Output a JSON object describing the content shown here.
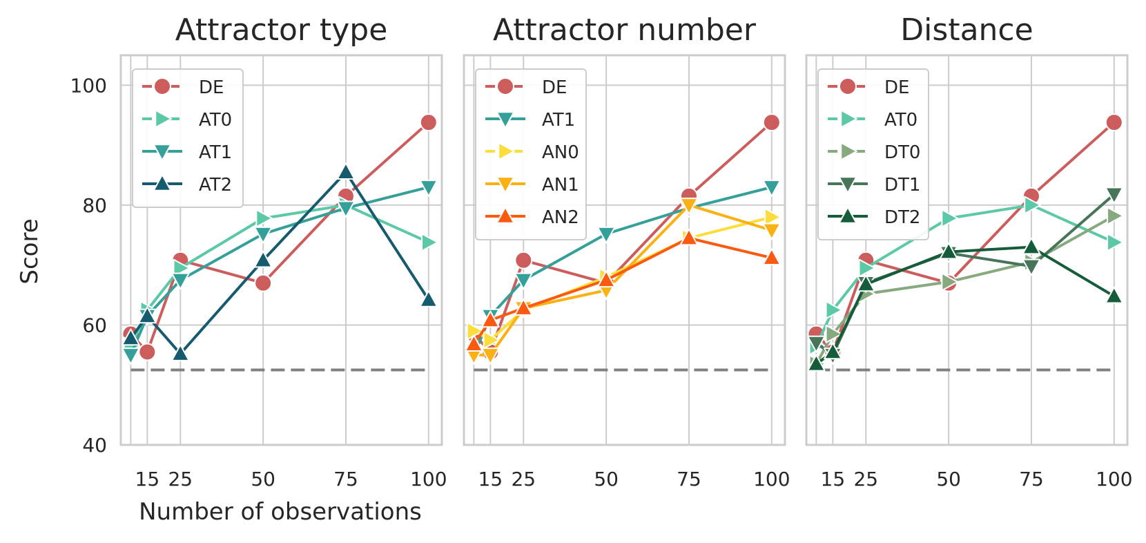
{
  "figure": {
    "ylabel": "Score",
    "xlabel": "Number of observations"
  },
  "chart_data": [
    {
      "type": "line",
      "title": "Attractor type",
      "x": [
        15,
        25,
        50,
        75,
        100
      ],
      "xticks": [
        "15",
        "25",
        "50",
        "75",
        "100"
      ],
      "ylim": [
        40,
        105
      ],
      "yticks": [
        40,
        60,
        80,
        100
      ],
      "baseline": {
        "style": "dashed",
        "color": "#808080",
        "y": 52.5,
        "x_range": [
          10,
          100
        ]
      },
      "series": [
        {
          "name": "DE",
          "color": "#cd5c5c",
          "marker": "circle",
          "dashed_legend": true,
          "points": [
            [
              10,
              58.5
            ],
            [
              15,
              55.5
            ],
            [
              25,
              70.8
            ],
            [
              50,
              67.0
            ],
            [
              75,
              81.5
            ],
            [
              100,
              93.8
            ]
          ]
        },
        {
          "name": "AT0",
          "color": "#5bc8a8",
          "marker": "triangle-right",
          "dashed_legend": true,
          "points": [
            [
              10,
              56.5
            ],
            [
              15,
              62.5
            ],
            [
              25,
              69.5
            ],
            [
              50,
              77.8
            ],
            [
              75,
              80.0
            ],
            [
              100,
              73.8
            ]
          ]
        },
        {
          "name": "AT1",
          "color": "#35a09a",
          "marker": "triangle-down",
          "points": [
            [
              10,
              55.0
            ],
            [
              15,
              61.5
            ],
            [
              25,
              67.5
            ],
            [
              50,
              75.2
            ],
            [
              75,
              79.5
            ],
            [
              100,
              83.0
            ]
          ]
        },
        {
          "name": "AT2",
          "color": "#165a6e",
          "marker": "triangle-up",
          "points": [
            [
              10,
              57.8
            ],
            [
              15,
              61.5
            ],
            [
              25,
              55.2
            ],
            [
              50,
              70.8
            ],
            [
              75,
              85.5
            ],
            [
              100,
              64.2
            ]
          ]
        }
      ],
      "legend": "top-left"
    },
    {
      "type": "line",
      "title": "Attractor number",
      "x": [
        15,
        25,
        50,
        75,
        100
      ],
      "xticks": [
        "15",
        "25",
        "50",
        "75",
        "100"
      ],
      "ylim": [
        40,
        105
      ],
      "yticks": [
        40,
        60,
        80,
        100
      ],
      "baseline": {
        "style": "dashed",
        "color": "#808080",
        "y": 52.5,
        "x_range": [
          10,
          100
        ]
      },
      "series": [
        {
          "name": "DE",
          "color": "#cd5c5c",
          "marker": "circle",
          "dashed_legend": true,
          "points": [
            [
              10,
              58.5
            ],
            [
              15,
              55.5
            ],
            [
              25,
              70.8
            ],
            [
              50,
              67.0
            ],
            [
              75,
              81.5
            ],
            [
              100,
              93.8
            ]
          ]
        },
        {
          "name": "AT1",
          "color": "#35a09a",
          "marker": "triangle-down",
          "points": [
            [
              10,
              55.0
            ],
            [
              15,
              61.5
            ],
            [
              25,
              67.5
            ],
            [
              50,
              75.2
            ],
            [
              75,
              79.5
            ],
            [
              100,
              83.0
            ]
          ]
        },
        {
          "name": "AN0",
          "color": "#fbde3c",
          "marker": "triangle-right",
          "dashed_legend": true,
          "points": [
            [
              10,
              59.0
            ],
            [
              15,
              57.5
            ],
            [
              25,
              62.5
            ],
            [
              50,
              68.0
            ],
            [
              75,
              74.5
            ],
            [
              100,
              78.0
            ]
          ]
        },
        {
          "name": "AN1",
          "color": "#fbb013",
          "marker": "triangle-down",
          "points": [
            [
              10,
              55.0
            ],
            [
              15,
              55.0
            ],
            [
              25,
              62.8
            ],
            [
              50,
              65.8
            ],
            [
              75,
              80.0
            ],
            [
              100,
              75.8
            ]
          ]
        },
        {
          "name": "AN2",
          "color": "#fb5a10",
          "marker": "triangle-up",
          "points": [
            [
              10,
              56.8
            ],
            [
              15,
              60.8
            ],
            [
              25,
              62.8
            ],
            [
              50,
              67.5
            ],
            [
              75,
              74.5
            ],
            [
              100,
              71.2
            ]
          ]
        }
      ],
      "legend": "top-left"
    },
    {
      "type": "line",
      "title": "Distance",
      "x": [
        15,
        25,
        50,
        75,
        100
      ],
      "xticks": [
        "15",
        "25",
        "50",
        "75",
        "100"
      ],
      "ylim": [
        40,
        105
      ],
      "yticks": [
        40,
        60,
        80,
        100
      ],
      "baseline": {
        "style": "dashed",
        "color": "#808080",
        "y": 52.5,
        "x_range": [
          10,
          100
        ]
      },
      "series": [
        {
          "name": "DE",
          "color": "#cd5c5c",
          "marker": "circle",
          "dashed_legend": true,
          "points": [
            [
              10,
              58.5
            ],
            [
              15,
              55.5
            ],
            [
              25,
              70.8
            ],
            [
              50,
              67.0
            ],
            [
              75,
              81.5
            ],
            [
              100,
              93.8
            ]
          ]
        },
        {
          "name": "AT0",
          "color": "#5bc8a8",
          "marker": "triangle-right",
          "dashed_legend": true,
          "points": [
            [
              10,
              56.5
            ],
            [
              15,
              62.5
            ],
            [
              25,
              69.5
            ],
            [
              50,
              77.8
            ],
            [
              75,
              80.0
            ],
            [
              100,
              73.8
            ]
          ]
        },
        {
          "name": "DT0",
          "color": "#86a97e",
          "marker": "triangle-right",
          "dashed_legend": true,
          "points": [
            [
              10,
              53.5
            ],
            [
              15,
              58.5
            ],
            [
              25,
              65.2
            ],
            [
              50,
              67.2
            ],
            [
              75,
              70.5
            ],
            [
              100,
              78.2
            ]
          ]
        },
        {
          "name": "DT1",
          "color": "#46755a",
          "marker": "triangle-down",
          "points": [
            [
              10,
              57.0
            ],
            [
              15,
              55.0
            ],
            [
              25,
              67.0
            ],
            [
              50,
              72.0
            ],
            [
              75,
              69.8
            ],
            [
              100,
              81.8
            ]
          ]
        },
        {
          "name": "DT2",
          "color": "#145c3a",
          "marker": "triangle-up",
          "points": [
            [
              10,
              53.5
            ],
            [
              15,
              55.5
            ],
            [
              25,
              66.8
            ],
            [
              50,
              72.2
            ],
            [
              75,
              73.0
            ],
            [
              100,
              64.8
            ]
          ]
        }
      ],
      "legend": "top-left"
    }
  ]
}
